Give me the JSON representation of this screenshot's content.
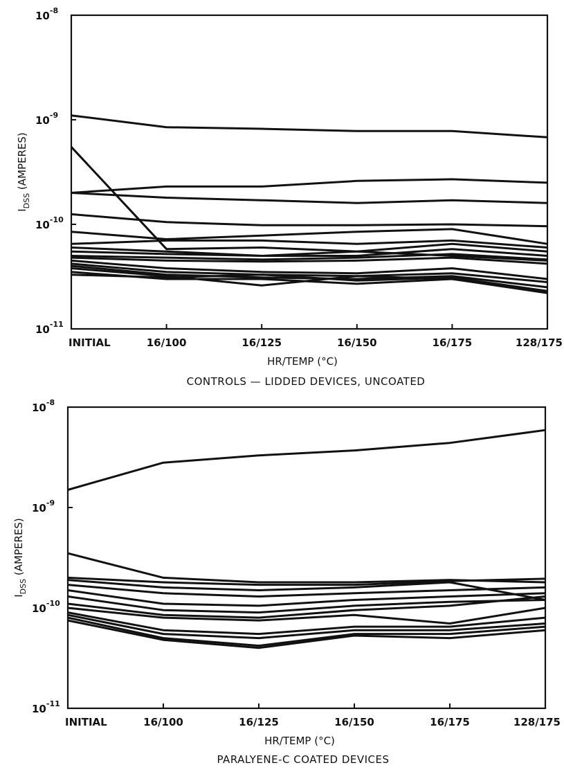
{
  "chart_data": [
    {
      "type": "line",
      "xlabel": "HR/TEMP (°C)",
      "ylabel_main": "I",
      "ylabel_sub": "DSS",
      "ylabel_rest": "(AMPERES)",
      "caption": "CONTROLS — LIDDED DEVICES, UNCOATED",
      "categories": [
        "INITIAL",
        "16/100",
        "16/125",
        "16/150",
        "16/175",
        "128/175"
      ],
      "yscale": "log",
      "ylim": [
        1e-11,
        1e-08
      ],
      "yticks": [
        {
          "base": "10",
          "exp": "-8"
        },
        {
          "base": "10",
          "exp": "-9"
        },
        {
          "base": "10",
          "exp": "-10"
        },
        {
          "base": "10",
          "exp": "-11"
        }
      ],
      "grid": false,
      "series": [
        {
          "values": [
            1.1e-09,
            8.5e-10,
            8.2e-10,
            7.8e-10,
            7.8e-10,
            6.8e-10
          ]
        },
        {
          "values": [
            5.5e-10,
            5.8e-11,
            6e-11,
            5.5e-11,
            5e-11,
            4.5e-11
          ]
        },
        {
          "values": [
            2e-10,
            2.3e-10,
            2.3e-10,
            2.6e-10,
            2.7e-10,
            2.5e-10
          ]
        },
        {
          "values": [
            2e-10,
            1.8e-10,
            1.7e-10,
            1.6e-10,
            1.7e-10,
            1.6e-10
          ]
        },
        {
          "values": [
            1.25e-10,
            1.05e-10,
            9.8e-11,
            9.8e-11,
            1e-10,
            9.6e-11
          ]
        },
        {
          "values": [
            8.5e-11,
            7.2e-11,
            7.8e-11,
            8.5e-11,
            9e-11,
            6.5e-11
          ]
        },
        {
          "values": [
            6.5e-11,
            7e-11,
            7e-11,
            6.5e-11,
            7e-11,
            6e-11
          ]
        },
        {
          "values": [
            6e-11,
            5.5e-11,
            5e-11,
            5.5e-11,
            6.5e-11,
            5.5e-11
          ]
        },
        {
          "values": [
            5.5e-11,
            5.2e-11,
            5e-11,
            5e-11,
            5.8e-11,
            5e-11
          ]
        },
        {
          "values": [
            5e-11,
            4.8e-11,
            4.6e-11,
            4.8e-11,
            5.2e-11,
            4.6e-11
          ]
        },
        {
          "values": [
            4.8e-11,
            4.5e-11,
            4.4e-11,
            4.5e-11,
            4.8e-11,
            4.2e-11
          ]
        },
        {
          "values": [
            4.5e-11,
            3.8e-11,
            3.5e-11,
            3.4e-11,
            3.8e-11,
            3e-11
          ]
        },
        {
          "values": [
            4.2e-11,
            3.5e-11,
            3.3e-11,
            3.2e-11,
            3.4e-11,
            2.8e-11
          ]
        },
        {
          "values": [
            4e-11,
            3.3e-11,
            3.1e-11,
            3e-11,
            3.2e-11,
            2.5e-11
          ]
        },
        {
          "values": [
            3.8e-11,
            3.2e-11,
            2.6e-11,
            3.2e-11,
            3e-11,
            2.3e-11
          ]
        },
        {
          "values": [
            3.5e-11,
            3e-11,
            3e-11,
            2.7e-11,
            3e-11,
            2.2e-11
          ]
        },
        {
          "values": [
            3.3e-11,
            3.1e-11,
            3.3e-11,
            2.9e-11,
            3.1e-11,
            2.3e-11
          ]
        }
      ]
    },
    {
      "type": "line",
      "xlabel": "HR/TEMP (°C)",
      "ylabel_main": "I",
      "ylabel_sub": "DSS",
      "ylabel_rest": "(AMPERES)",
      "caption": "PARALYENE-C COATED DEVICES",
      "categories": [
        "INITIAL",
        "16/100",
        "16/125",
        "16/150",
        "16/175",
        "128/175"
      ],
      "yscale": "log",
      "ylim": [
        1e-11,
        1e-08
      ],
      "yticks": [
        {
          "base": "10",
          "exp": "-8"
        },
        {
          "base": "10",
          "exp": "-9"
        },
        {
          "base": "10",
          "exp": "-10"
        },
        {
          "base": "10",
          "exp": "-11"
        }
      ],
      "grid": false,
      "series": [
        {
          "values": [
            1.5e-09,
            2.8e-09,
            3.3e-09,
            3.7e-09,
            4.4e-09,
            5.9e-09
          ]
        },
        {
          "values": [
            3.5e-10,
            2e-10,
            1.8e-10,
            1.8e-10,
            1.9e-10,
            1.8e-10
          ]
        },
        {
          "values": [
            2e-10,
            1.8e-10,
            1.7e-10,
            1.7e-10,
            1.85e-10,
            1.95e-10
          ]
        },
        {
          "values": [
            1.9e-10,
            1.6e-10,
            1.5e-10,
            1.6e-10,
            1.8e-10,
            1.2e-10
          ]
        },
        {
          "values": [
            1.7e-10,
            1.4e-10,
            1.3e-10,
            1.4e-10,
            1.5e-10,
            1.6e-10
          ]
        },
        {
          "values": [
            1.5e-10,
            1.1e-10,
            1.05e-10,
            1.2e-10,
            1.3e-10,
            1.4e-10
          ]
        },
        {
          "values": [
            1.3e-10,
            9.5e-11,
            9e-11,
            1.05e-10,
            1.15e-10,
            1.2e-10
          ]
        },
        {
          "values": [
            1.1e-10,
            8.5e-11,
            8e-11,
            9.5e-11,
            1.05e-10,
            1.3e-10
          ]
        },
        {
          "values": [
            1e-10,
            8e-11,
            7.5e-11,
            8.5e-11,
            7e-11,
            1e-10
          ]
        },
        {
          "values": [
            9e-11,
            6e-11,
            5.5e-11,
            6.5e-11,
            6.5e-11,
            8e-11
          ]
        },
        {
          "values": [
            8.5e-11,
            5.5e-11,
            5e-11,
            6e-11,
            6e-11,
            7e-11
          ]
        },
        {
          "values": [
            8e-11,
            5e-11,
            4.2e-11,
            5.5e-11,
            5.5e-11,
            6.5e-11
          ]
        },
        {
          "values": [
            7.5e-11,
            4.8e-11,
            4e-11,
            5.3e-11,
            5e-11,
            6e-11
          ]
        }
      ]
    }
  ]
}
